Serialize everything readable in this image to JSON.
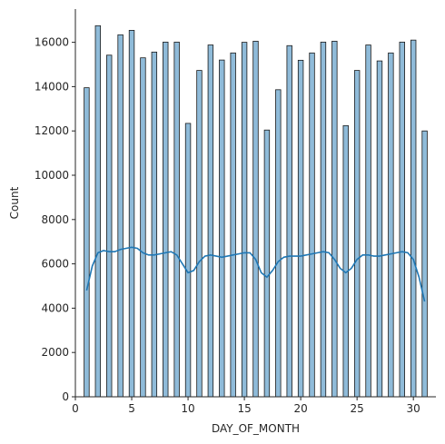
{
  "chart_data": {
    "type": "bar",
    "subtype": "histogram-with-kde",
    "xlabel": "DAY_OF_MONTH",
    "ylabel": "Count",
    "xlim": [
      0,
      32
    ],
    "ylim": [
      0,
      17500
    ],
    "xticks": [
      0,
      5,
      10,
      15,
      20,
      25,
      30
    ],
    "yticks": [
      0,
      2000,
      4000,
      6000,
      8000,
      10000,
      12000,
      14000,
      16000
    ],
    "grid": false,
    "legend": "none",
    "bar_color": "#1f77b4",
    "bar_fill_opacity": 0.5,
    "bar_edge_color": "#1a1a1a",
    "line_color": "#1f77b4",
    "bars": [
      {
        "day": 1,
        "count": 13950
      },
      {
        "day": 2,
        "count": 16750
      },
      {
        "day": 3,
        "count": 15420
      },
      {
        "day": 4,
        "count": 16340
      },
      {
        "day": 5,
        "count": 16540
      },
      {
        "day": 6,
        "count": 15300
      },
      {
        "day": 7,
        "count": 15560
      },
      {
        "day": 8,
        "count": 16010
      },
      {
        "day": 9,
        "count": 16010
      },
      {
        "day": 10,
        "count": 12340
      },
      {
        "day": 11,
        "count": 14730
      },
      {
        "day": 12,
        "count": 15880
      },
      {
        "day": 13,
        "count": 15200
      },
      {
        "day": 14,
        "count": 15520
      },
      {
        "day": 15,
        "count": 16000
      },
      {
        "day": 16,
        "count": 16050
      },
      {
        "day": 17,
        "count": 12040
      },
      {
        "day": 18,
        "count": 13860
      },
      {
        "day": 19,
        "count": 15850
      },
      {
        "day": 20,
        "count": 15190
      },
      {
        "day": 21,
        "count": 15520
      },
      {
        "day": 22,
        "count": 16010
      },
      {
        "day": 23,
        "count": 16050
      },
      {
        "day": 24,
        "count": 12240
      },
      {
        "day": 25,
        "count": 14730
      },
      {
        "day": 26,
        "count": 15880
      },
      {
        "day": 27,
        "count": 15160
      },
      {
        "day": 28,
        "count": 15520
      },
      {
        "day": 29,
        "count": 16010
      },
      {
        "day": 30,
        "count": 16100
      },
      {
        "day": 31,
        "count": 12000
      }
    ],
    "kde": {
      "x": [
        1,
        1.5,
        2,
        2.5,
        3,
        3.5,
        4,
        4.5,
        5,
        5.5,
        6,
        6.5,
        7,
        7.5,
        8,
        8.5,
        9,
        9.5,
        10,
        10.5,
        11,
        11.5,
        12,
        12.5,
        13,
        13.5,
        14,
        14.5,
        15,
        15.5,
        16,
        16.5,
        17,
        17.5,
        18,
        18.5,
        19,
        19.5,
        20,
        20.5,
        21,
        21.5,
        22,
        22.5,
        23,
        23.5,
        24,
        24.5,
        25,
        25.5,
        26,
        26.5,
        27,
        27.5,
        28,
        28.5,
        29,
        29.5,
        30,
        30.5,
        31
      ],
      "y": [
        4800,
        5900,
        6500,
        6600,
        6550,
        6550,
        6650,
        6700,
        6750,
        6700,
        6500,
        6400,
        6400,
        6450,
        6500,
        6550,
        6400,
        6000,
        5600,
        5700,
        6100,
        6350,
        6400,
        6350,
        6300,
        6350,
        6400,
        6450,
        6500,
        6500,
        6200,
        5600,
        5400,
        5700,
        6100,
        6300,
        6350,
        6350,
        6350,
        6400,
        6450,
        6500,
        6550,
        6500,
        6200,
        5800,
        5600,
        5800,
        6200,
        6400,
        6400,
        6350,
        6350,
        6400,
        6450,
        6500,
        6550,
        6500,
        6200,
        5400,
        4300
      ]
    }
  }
}
